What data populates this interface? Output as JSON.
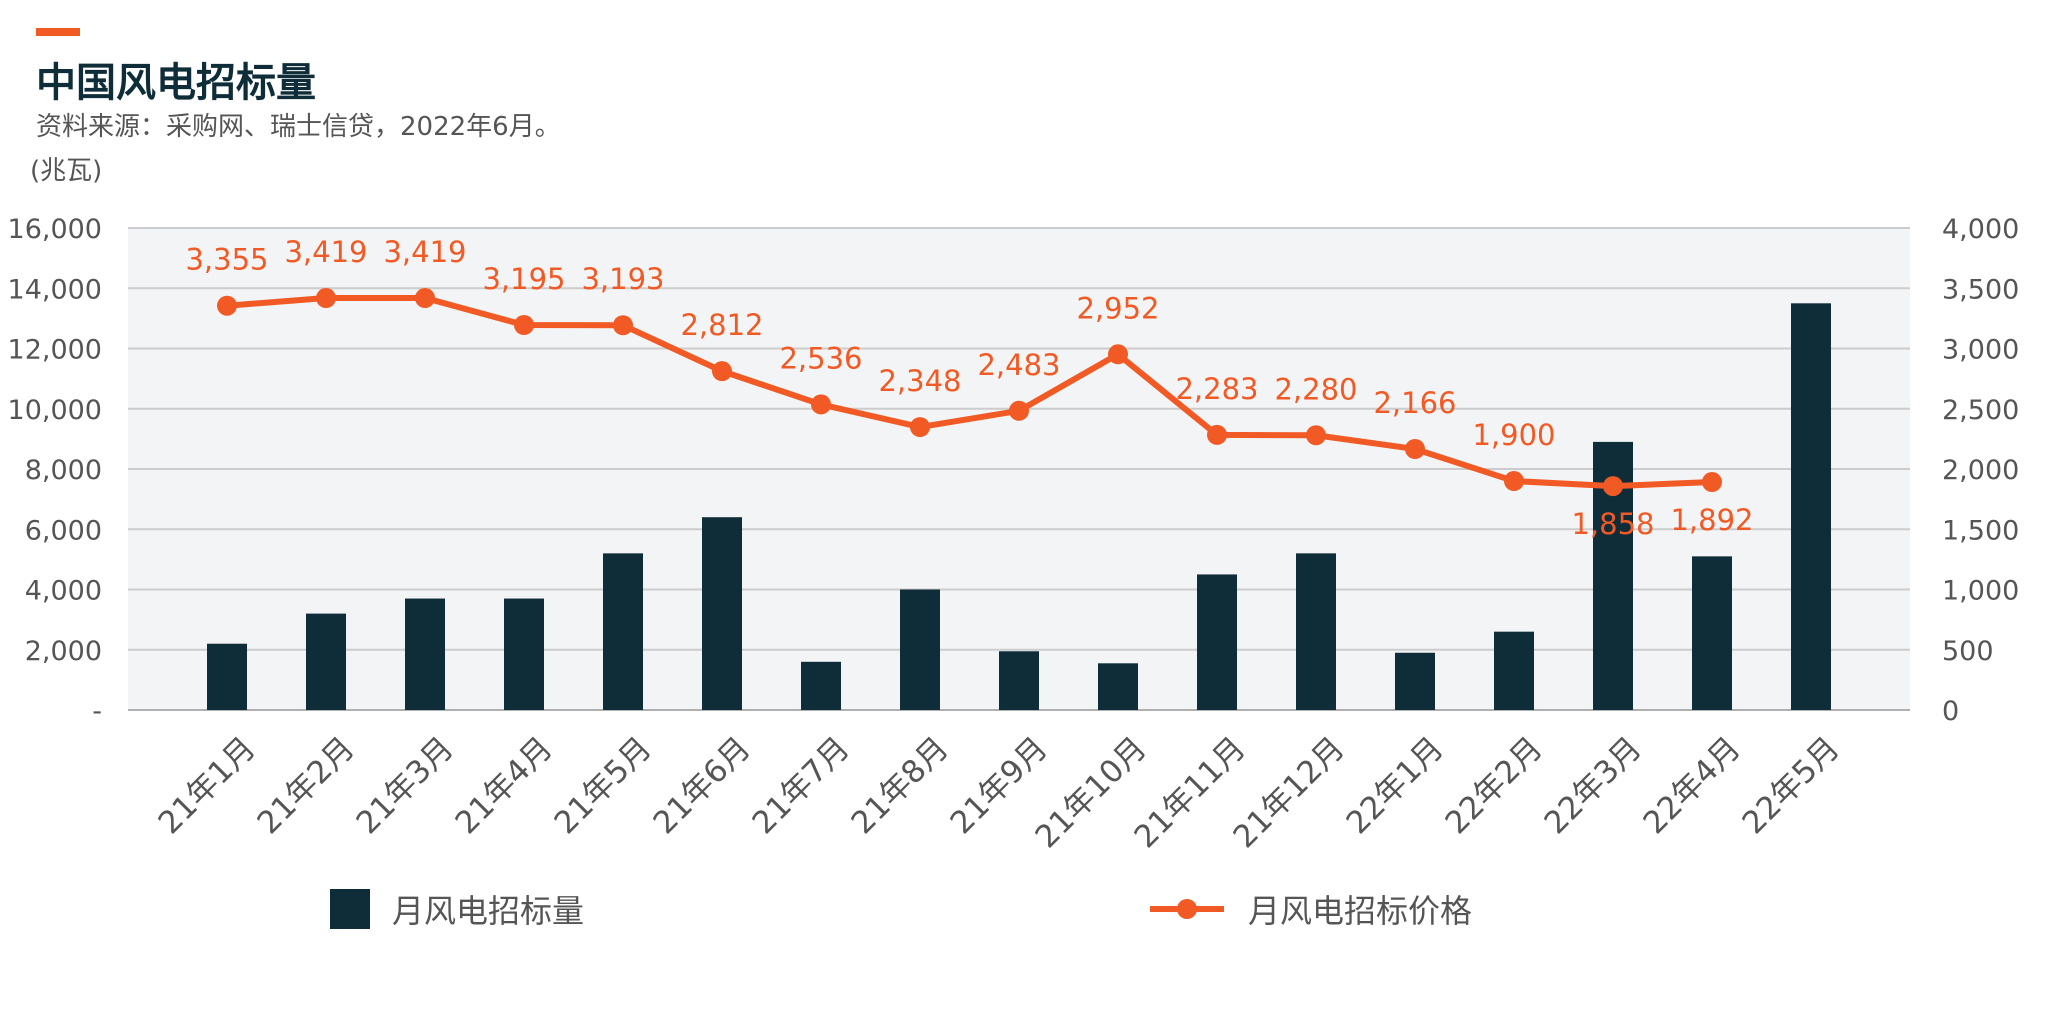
{
  "header": {
    "title": "中国风电招标量",
    "subtitle": "资料来源：采购网、瑞士信贷，2022年6月。",
    "unit": "(兆瓦)"
  },
  "colors": {
    "accent": "#f15a24",
    "bar": "#0f2d38",
    "line": "#f15a24",
    "plot_bg": "#f3f4f5",
    "grid": "#cccccc"
  },
  "chart_data": {
    "type": "bar+line",
    "title": "中国风电招标量",
    "categories": [
      "21年1月",
      "21年2月",
      "21年3月",
      "21年4月",
      "21年5月",
      "21年6月",
      "21年7月",
      "21年8月",
      "21年9月",
      "21年10月",
      "21年11月",
      "21年12月",
      "22年1月",
      "22年2月",
      "22年3月",
      "22年4月",
      "22年5月"
    ],
    "left_axis": {
      "ylim": [
        0,
        16000
      ],
      "ticks": [
        "-",
        "2,000",
        "4,000",
        "6,000",
        "8,000",
        "10,000",
        "12,000",
        "14,000",
        "16,000"
      ]
    },
    "right_axis": {
      "ylim": [
        0,
        4000
      ],
      "ticks": [
        "0",
        "500",
        "1,000",
        "1,500",
        "2,000",
        "2,500",
        "3,000",
        "3,500",
        "4,000"
      ]
    },
    "grid": true,
    "legend_position": "bottom",
    "series": [
      {
        "name": "月风电招标量",
        "type": "bar",
        "axis": "left",
        "values": [
          2200,
          3200,
          3700,
          3700,
          5200,
          6400,
          1600,
          4000,
          1950,
          1550,
          4500,
          5200,
          1900,
          2600,
          8900,
          5100,
          13500
        ]
      },
      {
        "name": "月风电招标价格",
        "type": "line",
        "axis": "right",
        "values": [
          3355,
          3419,
          3419,
          3195,
          3193,
          2812,
          2536,
          2348,
          2483,
          2952,
          2283,
          2280,
          2166,
          1900,
          1858,
          1892,
          null
        ],
        "labels": [
          "3,355",
          "3,419",
          "3,419",
          "3,195",
          "3,193",
          "2,812",
          "2,536",
          "2,348",
          "2,483",
          "2,952",
          "2,283",
          "2,280",
          "2,166",
          "1,900",
          "1,858",
          "1,892",
          ""
        ]
      }
    ]
  },
  "legend": {
    "bar_label": "月风电招标量",
    "line_label": "月风电招标价格"
  }
}
